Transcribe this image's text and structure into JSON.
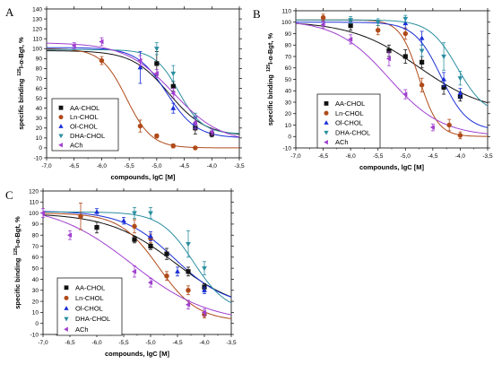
{
  "chart_data": [
    {
      "type": "scatter",
      "panel": "A",
      "xlabel": "compounds, lgC [M]",
      "ylabel_prefix": "specific binding",
      "ylabel_sup": "125",
      "ylabel_main": "I-α-Bgt, %",
      "xlim": [
        -7.0,
        -3.5
      ],
      "ylim": [
        -10,
        140
      ],
      "xticks": [
        "-7,0",
        "-6,5",
        "-6,0",
        "-5,5",
        "-5,0",
        "-4,5",
        "-4,0",
        "-3,5"
      ],
      "yticks": [
        "-10",
        "0",
        "10",
        "20",
        "30",
        "40",
        "50",
        "60",
        "70",
        "80",
        "90",
        "100",
        "110",
        "120",
        "130",
        "140"
      ],
      "legend_position": "bottom-left",
      "series": [
        {
          "name": "AA-CHOL",
          "color": "#111111",
          "marker": "square",
          "x": [
            -5.0,
            -4.7,
            -4.3,
            -4.0
          ],
          "y": [
            85,
            62,
            20,
            14
          ],
          "err": [
            12,
            5,
            6,
            3
          ],
          "ic50": -4.78,
          "hill": 1.3,
          "top": 98,
          "bottom": 12
        },
        {
          "name": "Ln-CHOL",
          "color": "#b04a1a",
          "marker": "circle",
          "x": [
            -6.0,
            -5.3,
            -5.0,
            -4.7,
            -4.3
          ],
          "y": [
            88,
            22,
            12,
            2,
            0
          ],
          "err": [
            4,
            6,
            2,
            2,
            1
          ],
          "ic50": -5.55,
          "hill": 1.9,
          "top": 100,
          "bottom": 0
        },
        {
          "name": "Ol-CHOL",
          "color": "#1a2fd6",
          "marker": "triangle-up",
          "x": [
            -5.3,
            -4.7,
            -4.3
          ],
          "y": [
            81,
            40,
            25
          ],
          "err": [
            16,
            5,
            5
          ],
          "ic50": -4.82,
          "hill": 1.6,
          "top": 101,
          "bottom": 10
        },
        {
          "name": "DHA-CHOL",
          "color": "#2b8fa0",
          "marker": "triangle-down",
          "x": [
            -5.0,
            -4.7,
            -4.3
          ],
          "y": [
            100,
            75,
            30
          ],
          "err": [
            6,
            8,
            5
          ],
          "ic50": -4.6,
          "hill": 2.0,
          "top": 99,
          "bottom": 14
        },
        {
          "name": "ACh",
          "color": "#a040d0",
          "marker": "triangle-left",
          "x": [
            -6.5,
            -6.0,
            -5.3,
            -5.0,
            -4.7,
            -4.3,
            -4.0
          ],
          "y": [
            103,
            107,
            88,
            75,
            55,
            25,
            16
          ],
          "err": [
            3,
            4,
            5,
            4,
            5,
            6,
            3
          ],
          "ic50": -4.7,
          "hill": 1.0,
          "top": 106,
          "bottom": 5
        }
      ]
    },
    {
      "type": "scatter",
      "panel": "B",
      "xlabel": "compounds, lgC [M]",
      "ylabel_prefix": "specific binding",
      "ylabel_sup": "125",
      "ylabel_main": "I-α-Bgt, %",
      "xlim": [
        -7.0,
        -3.5
      ],
      "ylim": [
        -10,
        110
      ],
      "xticks": [
        "-7,0",
        "-6,5",
        "-6,0",
        "-5,5",
        "-5,0",
        "-4,5",
        "-4,0",
        "-3,5"
      ],
      "yticks": [
        "-10",
        "0",
        "10",
        "20",
        "30",
        "40",
        "50",
        "60",
        "70",
        "80",
        "90",
        "100",
        "110"
      ],
      "legend_position": "bottom-right",
      "series": [
        {
          "name": "AA-CHOL",
          "color": "#111111",
          "marker": "square",
          "x": [
            -6.0,
            -5.3,
            -5.0,
            -4.7,
            -4.3,
            -4.0
          ],
          "y": [
            97,
            75,
            70,
            65,
            43,
            35
          ],
          "err": [
            4,
            5,
            6,
            5,
            6,
            4
          ],
          "ic50": -4.75,
          "hill": 0.7,
          "top": 101,
          "bottom": 20
        },
        {
          "name": "Ln-CHOL",
          "color": "#b04a1a",
          "marker": "circle",
          "x": [
            -6.5,
            -5.5,
            -5.0,
            -4.7,
            -4.2,
            -4.0
          ],
          "y": [
            104,
            93,
            90,
            45,
            10,
            1
          ],
          "err": [
            3,
            4,
            5,
            6,
            5,
            3
          ],
          "ic50": -4.75,
          "hill": 2.5,
          "top": 102,
          "bottom": 0
        },
        {
          "name": "Ol-CHOL",
          "color": "#1a2fd6",
          "marker": "triangle-up",
          "x": [
            -5.0,
            -4.7,
            -4.3,
            -4.0
          ],
          "y": [
            99,
            86,
            50,
            38
          ],
          "err": [
            5,
            6,
            6,
            4
          ],
          "ic50": -4.35,
          "hill": 1.8,
          "top": 100,
          "bottom": 5
        },
        {
          "name": "DHA-CHOL",
          "color": "#2b8fa0",
          "marker": "triangle-down",
          "x": [
            -6.0,
            -5.5,
            -5.0,
            -4.7,
            -4.3,
            -4.0
          ],
          "y": [
            102,
            100,
            103,
            75,
            70,
            51
          ],
          "err": [
            3,
            3,
            3,
            5,
            12,
            6
          ],
          "ic50": -4.05,
          "hill": 1.7,
          "top": 102,
          "bottom": 18
        },
        {
          "name": "ACh",
          "color": "#a040d0",
          "marker": "triangle-left",
          "x": [
            -6.5,
            -6.0,
            -5.3,
            -5.0,
            -4.5
          ],
          "y": [
            98,
            85,
            68,
            37,
            8
          ],
          "err": [
            3,
            4,
            6,
            4,
            3
          ],
          "ic50": -5.3,
          "hill": 0.9,
          "top": 102,
          "bottom": 0
        }
      ]
    },
    {
      "type": "scatter",
      "panel": "C",
      "xlabel": "compounds, lgC [M]",
      "ylabel_prefix": "specific binding",
      "ylabel_sup": "125",
      "ylabel_main": "I-α-Bgt, %",
      "xlim": [
        -7.0,
        -3.5
      ],
      "ylim": [
        -10,
        120
      ],
      "xticks": [
        "-7,0",
        "-6,5",
        "-6,0",
        "-5,5",
        "-5,0",
        "-4,5",
        "-4,0",
        "-3,5"
      ],
      "yticks": [
        "-10",
        "0",
        "10",
        "20",
        "30",
        "40",
        "50",
        "60",
        "70",
        "80",
        "90",
        "100",
        "110",
        "120"
      ],
      "legend_position": "bottom-right",
      "series": [
        {
          "name": "AA-CHOL",
          "color": "#111111",
          "marker": "square",
          "x": [
            -6.0,
            -5.3,
            -5.0,
            -4.7,
            -4.3,
            -4.0
          ],
          "y": [
            87,
            76,
            70,
            63,
            47,
            33
          ],
          "err": [
            5,
            3,
            3,
            5,
            4,
            3
          ],
          "ic50": -4.55,
          "hill": 0.7,
          "top": 100,
          "bottom": 10
        },
        {
          "name": "Ln-CHOL",
          "color": "#b04a1a",
          "marker": "circle",
          "x": [
            -6.3,
            -5.3,
            -5.0,
            -4.7,
            -4.3,
            -4.0
          ],
          "y": [
            97,
            88,
            77,
            43,
            30,
            8
          ],
          "err": [
            12,
            6,
            4,
            4,
            4,
            3
          ],
          "ic50": -4.85,
          "hill": 1.2,
          "top": 100,
          "bottom": 2
        },
        {
          "name": "Ol-CHOL",
          "color": "#1a2fd6",
          "marker": "triangle-up",
          "x": [
            -6.0,
            -5.5,
            -5.0,
            -4.5,
            -4.0
          ],
          "y": [
            101,
            93,
            79,
            47,
            30
          ],
          "err": [
            3,
            3,
            4,
            4,
            3
          ],
          "ic50": -4.55,
          "hill": 0.9,
          "top": 102,
          "bottom": 15
        },
        {
          "name": "DHA-CHOL",
          "color": "#2b8fa0",
          "marker": "triangle-down",
          "x": [
            -5.3,
            -5.0,
            -4.3,
            -4.0
          ],
          "y": [
            100,
            100,
            72,
            50
          ],
          "err": [
            5,
            5,
            12,
            6
          ],
          "ic50": -4.2,
          "hill": 1.4,
          "top": 101,
          "bottom": 10
        },
        {
          "name": "ACh",
          "color": "#a040d0",
          "marker": "triangle-left",
          "x": [
            -7.0,
            -6.5,
            -5.3,
            -5.0,
            -4.3,
            -4.0
          ],
          "y": [
            100,
            80,
            47,
            37,
            17,
            10
          ],
          "err": [
            4,
            4,
            5,
            4,
            4,
            3
          ],
          "ic50": -5.35,
          "hill": 0.6,
          "top": 108,
          "bottom": 0
        }
      ]
    }
  ]
}
